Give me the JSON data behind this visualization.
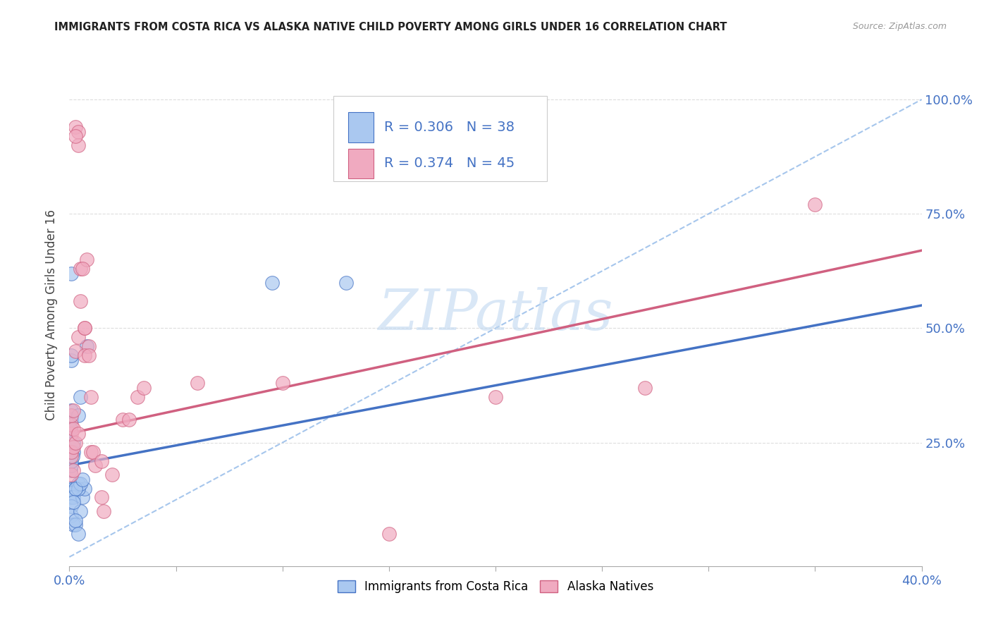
{
  "title": "IMMIGRANTS FROM COSTA RICA VS ALASKA NATIVE CHILD POVERTY AMONG GIRLS UNDER 16 CORRELATION CHART",
  "source": "Source: ZipAtlas.com",
  "ylabel": "Child Poverty Among Girls Under 16",
  "xlim": [
    0.0,
    0.4
  ],
  "ylim": [
    -0.02,
    1.08
  ],
  "watermark": "ZIPatlas",
  "legend": {
    "blue_r": "0.306",
    "blue_n": "38",
    "pink_r": "0.374",
    "pink_n": "45"
  },
  "blue_scatter": [
    [
      0.0005,
      0.19
    ],
    [
      0.001,
      0.62
    ],
    [
      0.001,
      0.43
    ],
    [
      0.001,
      0.3
    ],
    [
      0.0008,
      0.44
    ],
    [
      0.001,
      0.32
    ],
    [
      0.0005,
      0.28
    ],
    [
      0.001,
      0.2
    ],
    [
      0.001,
      0.15
    ],
    [
      0.002,
      0.15
    ],
    [
      0.003,
      0.15
    ],
    [
      0.004,
      0.16
    ],
    [
      0.001,
      0.14
    ],
    [
      0.001,
      0.13
    ],
    [
      0.002,
      0.13
    ],
    [
      0.001,
      0.11
    ],
    [
      0.001,
      0.09
    ],
    [
      0.002,
      0.07
    ],
    [
      0.003,
      0.07
    ],
    [
      0.005,
      0.1
    ],
    [
      0.006,
      0.13
    ],
    [
      0.007,
      0.15
    ],
    [
      0.004,
      0.15
    ],
    [
      0.005,
      0.16
    ],
    [
      0.001,
      0.21
    ],
    [
      0.002,
      0.23
    ],
    [
      0.0015,
      0.22
    ],
    [
      0.002,
      0.25
    ],
    [
      0.004,
      0.31
    ],
    [
      0.005,
      0.35
    ],
    [
      0.008,
      0.46
    ],
    [
      0.003,
      0.15
    ],
    [
      0.002,
      0.12
    ],
    [
      0.003,
      0.08
    ],
    [
      0.004,
      0.05
    ],
    [
      0.006,
      0.17
    ],
    [
      0.13,
      0.6
    ],
    [
      0.095,
      0.6
    ]
  ],
  "pink_scatter": [
    [
      0.001,
      0.27
    ],
    [
      0.001,
      0.29
    ],
    [
      0.002,
      0.28
    ],
    [
      0.001,
      0.22
    ],
    [
      0.001,
      0.23
    ],
    [
      0.002,
      0.24
    ],
    [
      0.001,
      0.18
    ],
    [
      0.002,
      0.19
    ],
    [
      0.003,
      0.25
    ],
    [
      0.004,
      0.27
    ],
    [
      0.001,
      0.31
    ],
    [
      0.002,
      0.32
    ],
    [
      0.003,
      0.45
    ],
    [
      0.004,
      0.48
    ],
    [
      0.005,
      0.56
    ],
    [
      0.005,
      0.63
    ],
    [
      0.007,
      0.5
    ],
    [
      0.007,
      0.5
    ],
    [
      0.008,
      0.65
    ],
    [
      0.009,
      0.46
    ],
    [
      0.003,
      0.94
    ],
    [
      0.004,
      0.93
    ],
    [
      0.004,
      0.9
    ],
    [
      0.003,
      0.92
    ],
    [
      0.006,
      0.63
    ],
    [
      0.007,
      0.44
    ],
    [
      0.009,
      0.44
    ],
    [
      0.01,
      0.35
    ],
    [
      0.01,
      0.23
    ],
    [
      0.011,
      0.23
    ],
    [
      0.012,
      0.2
    ],
    [
      0.015,
      0.21
    ],
    [
      0.015,
      0.13
    ],
    [
      0.016,
      0.1
    ],
    [
      0.02,
      0.18
    ],
    [
      0.025,
      0.3
    ],
    [
      0.028,
      0.3
    ],
    [
      0.032,
      0.35
    ],
    [
      0.035,
      0.37
    ],
    [
      0.35,
      0.77
    ],
    [
      0.27,
      0.37
    ],
    [
      0.2,
      0.35
    ],
    [
      0.15,
      0.05
    ],
    [
      0.1,
      0.38
    ],
    [
      0.06,
      0.38
    ]
  ],
  "blue_line_x": [
    0.0,
    0.4
  ],
  "blue_line_y": [
    0.2,
    0.55
  ],
  "pink_line_x": [
    0.0,
    0.4
  ],
  "pink_line_y": [
    0.27,
    0.67
  ],
  "dashed_line_x": [
    0.0,
    0.4
  ],
  "dashed_line_y": [
    0.0,
    1.0
  ],
  "blue_color": "#aac8f0",
  "pink_color": "#f0aac0",
  "blue_line_color": "#4472c4",
  "pink_line_color": "#d06080",
  "dashed_color": "#90b8e8",
  "title_color": "#222222",
  "axis_label_color": "#4472c4",
  "watermark_color": "#c0d8f0",
  "grid_color": "#dddddd",
  "bg_color": "#ffffff"
}
